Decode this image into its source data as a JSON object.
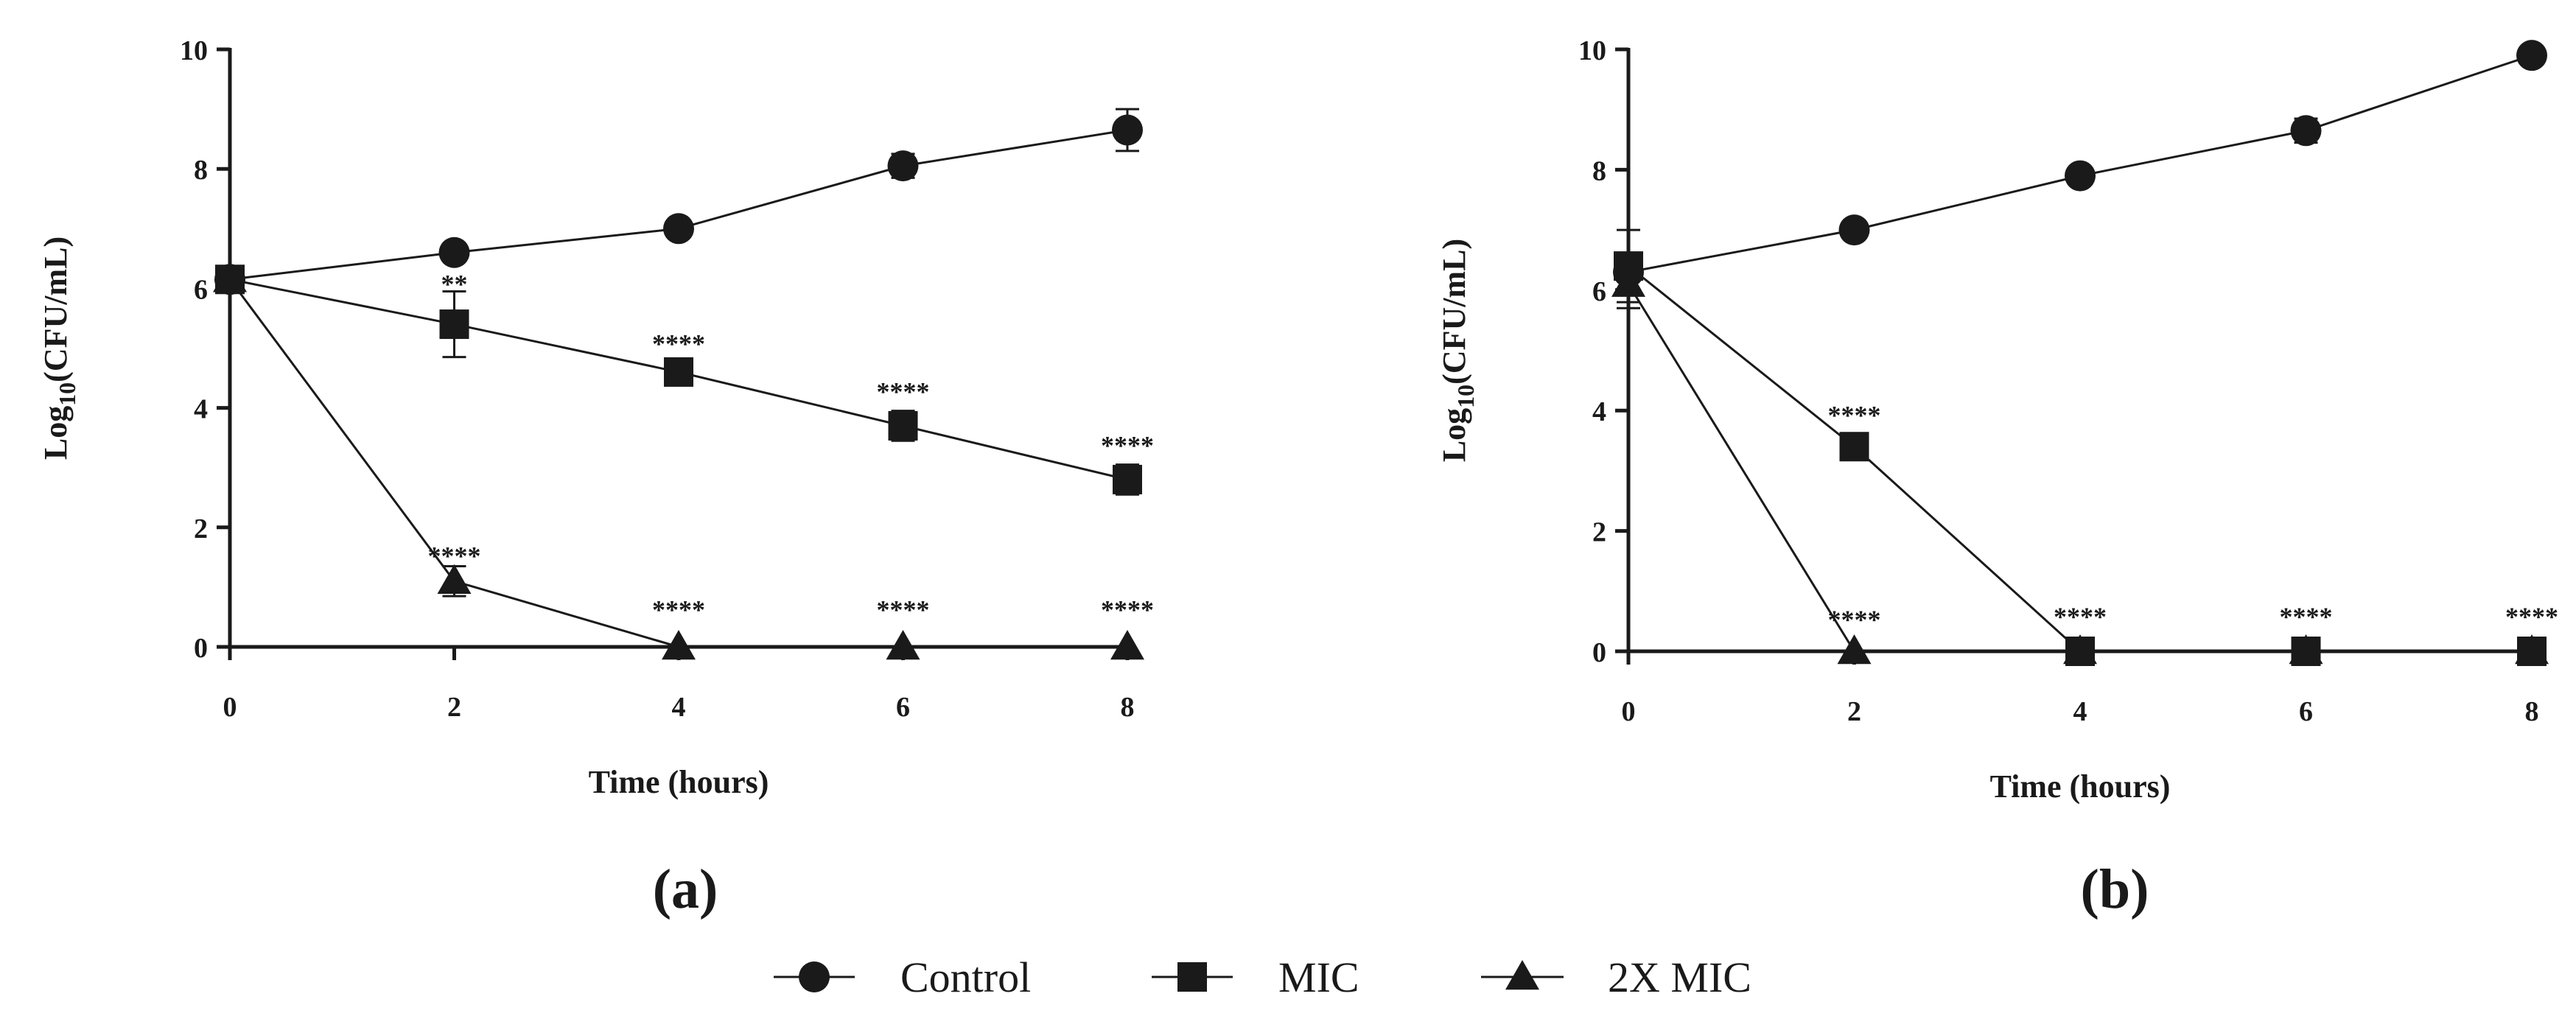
{
  "chart_data": [
    {
      "type": "line",
      "panel_label": "(a)",
      "xlabel": "Time (hours)",
      "ylabel_main": "Log",
      "ylabel_sub": "10",
      "ylabel_rest": "(CFU/mL)",
      "x": [
        0,
        2,
        4,
        6,
        8
      ],
      "xlim": [
        0,
        8
      ],
      "ylim": [
        0,
        10
      ],
      "xticks": [
        "0",
        "2",
        "4",
        "6",
        "8"
      ],
      "yticks": [
        "0",
        "2",
        "4",
        "6",
        "8",
        "10"
      ],
      "grid": false,
      "series": [
        {
          "name": "Control",
          "marker": "circle",
          "values": [
            6.15,
            6.6,
            7.0,
            8.05,
            8.65
          ],
          "errors": [
            0.15,
            0.05,
            0.05,
            0.2,
            0.35
          ]
        },
        {
          "name": "MIC",
          "marker": "square",
          "values": [
            6.15,
            5.4,
            4.6,
            3.7,
            2.8
          ],
          "errors": [
            0.15,
            0.55,
            0.1,
            0.25,
            0.25
          ]
        },
        {
          "name": "2X MIC",
          "marker": "triangle",
          "values": [
            6.15,
            1.1,
            0,
            0,
            0
          ],
          "errors": [
            0.15,
            0.25,
            0,
            0,
            0
          ]
        }
      ],
      "annotations": [
        {
          "x": 2,
          "y": 6.1,
          "text": "**"
        },
        {
          "x": 4,
          "y": 5.1,
          "text": "****"
        },
        {
          "x": 6,
          "y": 4.3,
          "text": "****"
        },
        {
          "x": 8,
          "y": 3.4,
          "text": "****"
        },
        {
          "x": 2,
          "y": 1.55,
          "text": "****"
        },
        {
          "x": 4,
          "y": 0.65,
          "text": "****"
        },
        {
          "x": 6,
          "y": 0.65,
          "text": "****"
        },
        {
          "x": 8,
          "y": 0.65,
          "text": "****"
        }
      ]
    },
    {
      "type": "line",
      "panel_label": "(b)",
      "xlabel": "Time (hours)",
      "ylabel_main": "Log",
      "ylabel_sub": "10",
      "ylabel_rest": "(CFU/mL)",
      "x": [
        0,
        2,
        4,
        6,
        8
      ],
      "xlim": [
        0,
        8
      ],
      "ylim": [
        0,
        10
      ],
      "xticks": [
        "0",
        "2",
        "4",
        "6",
        "8"
      ],
      "yticks": [
        "0",
        "2",
        "4",
        "6",
        "8",
        "10"
      ],
      "grid": false,
      "series": [
        {
          "name": "Control",
          "marker": "circle",
          "values": [
            6.3,
            7.0,
            7.9,
            8.65,
            9.9
          ],
          "errors": [
            0.1,
            0.05,
            0.05,
            0.2,
            0.05
          ]
        },
        {
          "name": "MIC",
          "marker": "square",
          "values": [
            6.4,
            3.4,
            0,
            0,
            0
          ],
          "errors": [
            0.6,
            0.1,
            0,
            0,
            0
          ]
        },
        {
          "name": "2X MIC",
          "marker": "triangle",
          "values": [
            6.1,
            0,
            0,
            0,
            0
          ],
          "errors": [
            0.4,
            0,
            0,
            0,
            0
          ]
        }
      ],
      "annotations": [
        {
          "x": 2,
          "y": 3.95,
          "text": "****"
        },
        {
          "x": 2,
          "y": 0.55,
          "text": "****"
        },
        {
          "x": 4,
          "y": 0.6,
          "text": "****"
        },
        {
          "x": 6,
          "y": 0.6,
          "text": "****"
        },
        {
          "x": 8,
          "y": 0.6,
          "text": "****"
        }
      ]
    }
  ],
  "legend": {
    "position": "bottom-center",
    "items": [
      {
        "label": "Control",
        "marker": "circle"
      },
      {
        "label": "MIC",
        "marker": "square"
      },
      {
        "label": "2X MIC",
        "marker": "triangle"
      }
    ]
  },
  "colors": {
    "ink": "#1a1a1a",
    "background": "#ffffff"
  }
}
